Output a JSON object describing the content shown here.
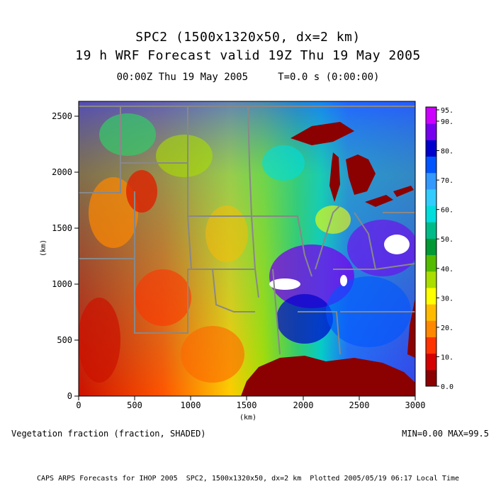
{
  "header": {
    "title_line1": "SPC2 (1500x1320x50, dx=2 km)",
    "title_line2": "19 h WRF Forecast valid 19Z Thu 19 May 2005",
    "time_line": "00:00Z Thu 19 May 2005     T=0.0 s (0:00:00)"
  },
  "axes": {
    "xlabel": "(km)",
    "ylabel": "(km)",
    "x_ticks": [
      "0",
      "500",
      "1000",
      "1500",
      "2000",
      "2500",
      "3000"
    ],
    "y_ticks": [
      "0",
      "500",
      "1000",
      "1500",
      "2000",
      "2500"
    ],
    "x_range": [
      0,
      3000
    ],
    "y_range": [
      0,
      2640
    ]
  },
  "colorbar": {
    "labels": [
      "0.0",
      "10.",
      "20.",
      "30.",
      "40.",
      "50.",
      "60.",
      "70.",
      "80.",
      "90.",
      "95."
    ],
    "colors": [
      "#8b0000",
      "#d40000",
      "#ff3300",
      "#ff8800",
      "#ffbb00",
      "#ffff00",
      "#aadd00",
      "#55bb00",
      "#009933",
      "#00bb88",
      "#00dddd",
      "#33ccff",
      "#3399ff",
      "#0055ff",
      "#0000cc",
      "#7700ee",
      "#cc00ff"
    ]
  },
  "field": {
    "name": "Vegetation fraction (fraction, SHADED)",
    "min_max": "MIN=0.00 MAX=99.5"
  },
  "credits": "CAPS ARPS Forecasts for IHOP 2005  SPC2, 1500x1320x50, dx=2 km  Plotted 2005/05/19 06:17 Local Time"
}
